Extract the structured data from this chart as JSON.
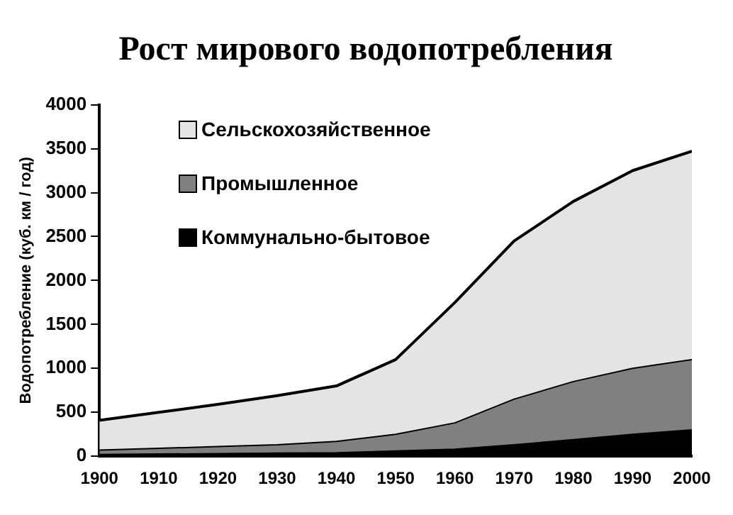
{
  "chart_data": {
    "type": "area",
    "title": "Рост мирового водопотребления",
    "ylabel": "Водопотребление (куб. км / год)",
    "stacked": true,
    "x": [
      1900,
      1910,
      1920,
      1930,
      1940,
      1950,
      1960,
      1970,
      1980,
      1990,
      2000
    ],
    "series": [
      {
        "name": "Коммунально-бытовое",
        "color": "#000000",
        "values": [
          20,
          25,
          30,
          35,
          40,
          60,
          80,
          130,
          190,
          250,
          300
        ]
      },
      {
        "name": "Промышленное",
        "color": "#808080",
        "values": [
          50,
          65,
          80,
          95,
          130,
          190,
          300,
          520,
          660,
          750,
          800
        ]
      },
      {
        "name": "Сельскохозяйственное",
        "color": "#e4e4e4",
        "values": [
          340,
          410,
          480,
          560,
          630,
          850,
          1370,
          1800,
          2050,
          2250,
          2370
        ]
      }
    ],
    "xlim": [
      1900,
      2000
    ],
    "xticks": [
      1900,
      1910,
      1920,
      1930,
      1940,
      1950,
      1960,
      1970,
      1980,
      1990,
      2000
    ],
    "ylim": [
      0,
      4000
    ],
    "yticks": [
      0,
      500,
      1000,
      1500,
      2000,
      2500,
      3000,
      3500,
      4000
    ],
    "grid": false,
    "legend": "top left"
  }
}
